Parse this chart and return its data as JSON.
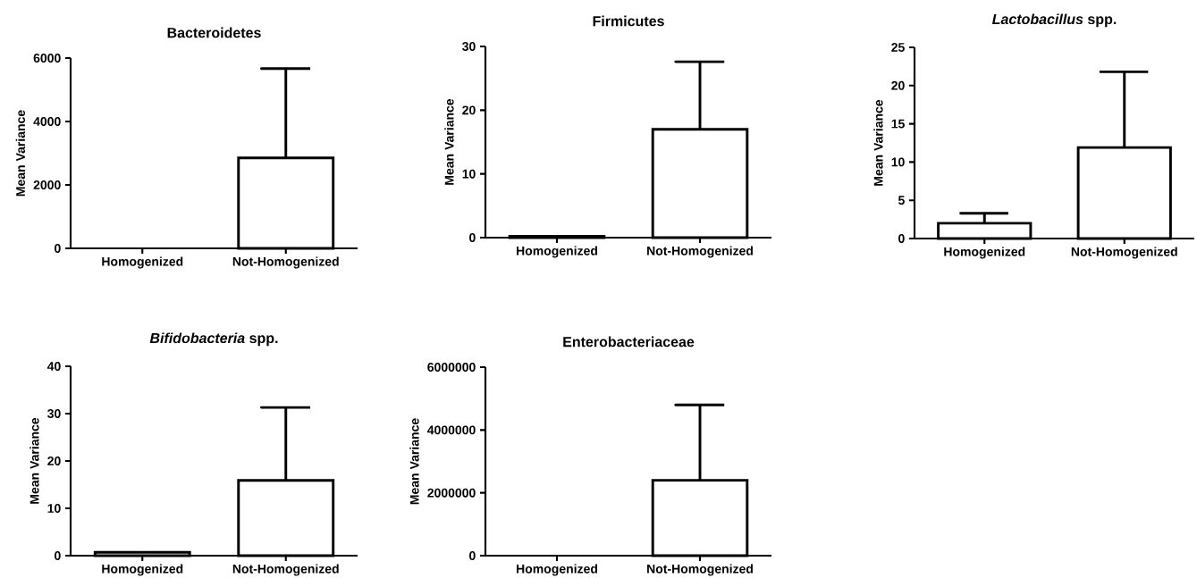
{
  "chart_data": [
    {
      "type": "bar",
      "title": "Bacteroidetes",
      "ylabel": "Mean Variance",
      "categories": [
        "Homogenized",
        "Not-Homogenized"
      ],
      "values": [
        null,
        2850
      ],
      "errors": [
        null,
        [
          2850,
          5670
        ]
      ],
      "color": "#ffffff",
      "ylim": [
        0,
        6000
      ],
      "yticks": [
        0,
        2000,
        4000,
        6000
      ]
    },
    {
      "type": "bar",
      "title": "Firmicutes",
      "ylabel": "Mean Variance",
      "categories": [
        "Homogenized",
        "Not-Homogenized"
      ],
      "values": [
        0.2,
        17.0
      ],
      "errors": [
        null,
        [
          17.0,
          27.6
        ]
      ],
      "color": "#ffffff",
      "ylim": [
        0,
        30
      ],
      "yticks": [
        0,
        10,
        20,
        30
      ]
    },
    {
      "type": "bar",
      "title": "*Lactobacillus* spp.",
      "ylabel": "Mean Variance",
      "categories": [
        "Homogenized",
        "Not-Homogenized"
      ],
      "values": [
        2.0,
        11.9
      ],
      "errors": [
        [
          2.0,
          3.3
        ],
        [
          11.9,
          21.8
        ]
      ],
      "color": "#ffffff",
      "ylim": [
        0,
        25
      ],
      "yticks": [
        0,
        5,
        10,
        15,
        20,
        25
      ]
    },
    {
      "type": "bar",
      "title": "*Bifidobacteria* spp.",
      "ylabel": "Mean Variance",
      "categories": [
        "Homogenized",
        "Not-Homogenized"
      ],
      "values": [
        0.7,
        15.9
      ],
      "errors": [
        null,
        [
          15.9,
          31.3
        ]
      ],
      "color": "#ffffff",
      "ylim": [
        0,
        40
      ],
      "yticks": [
        0,
        10,
        20,
        30,
        40
      ]
    },
    {
      "type": "bar",
      "title": "Enterobacteriaceae",
      "ylabel": "Mean Variance",
      "categories": [
        "Homogenized",
        "Not-Homogenized"
      ],
      "values": [
        null,
        2400000
      ],
      "errors": [
        null,
        [
          2400000,
          4800000
        ]
      ],
      "color": "#ffffff",
      "ylim": [
        0,
        6000000
      ],
      "yticks": [
        0,
        2000000,
        4000000,
        6000000
      ]
    }
  ]
}
